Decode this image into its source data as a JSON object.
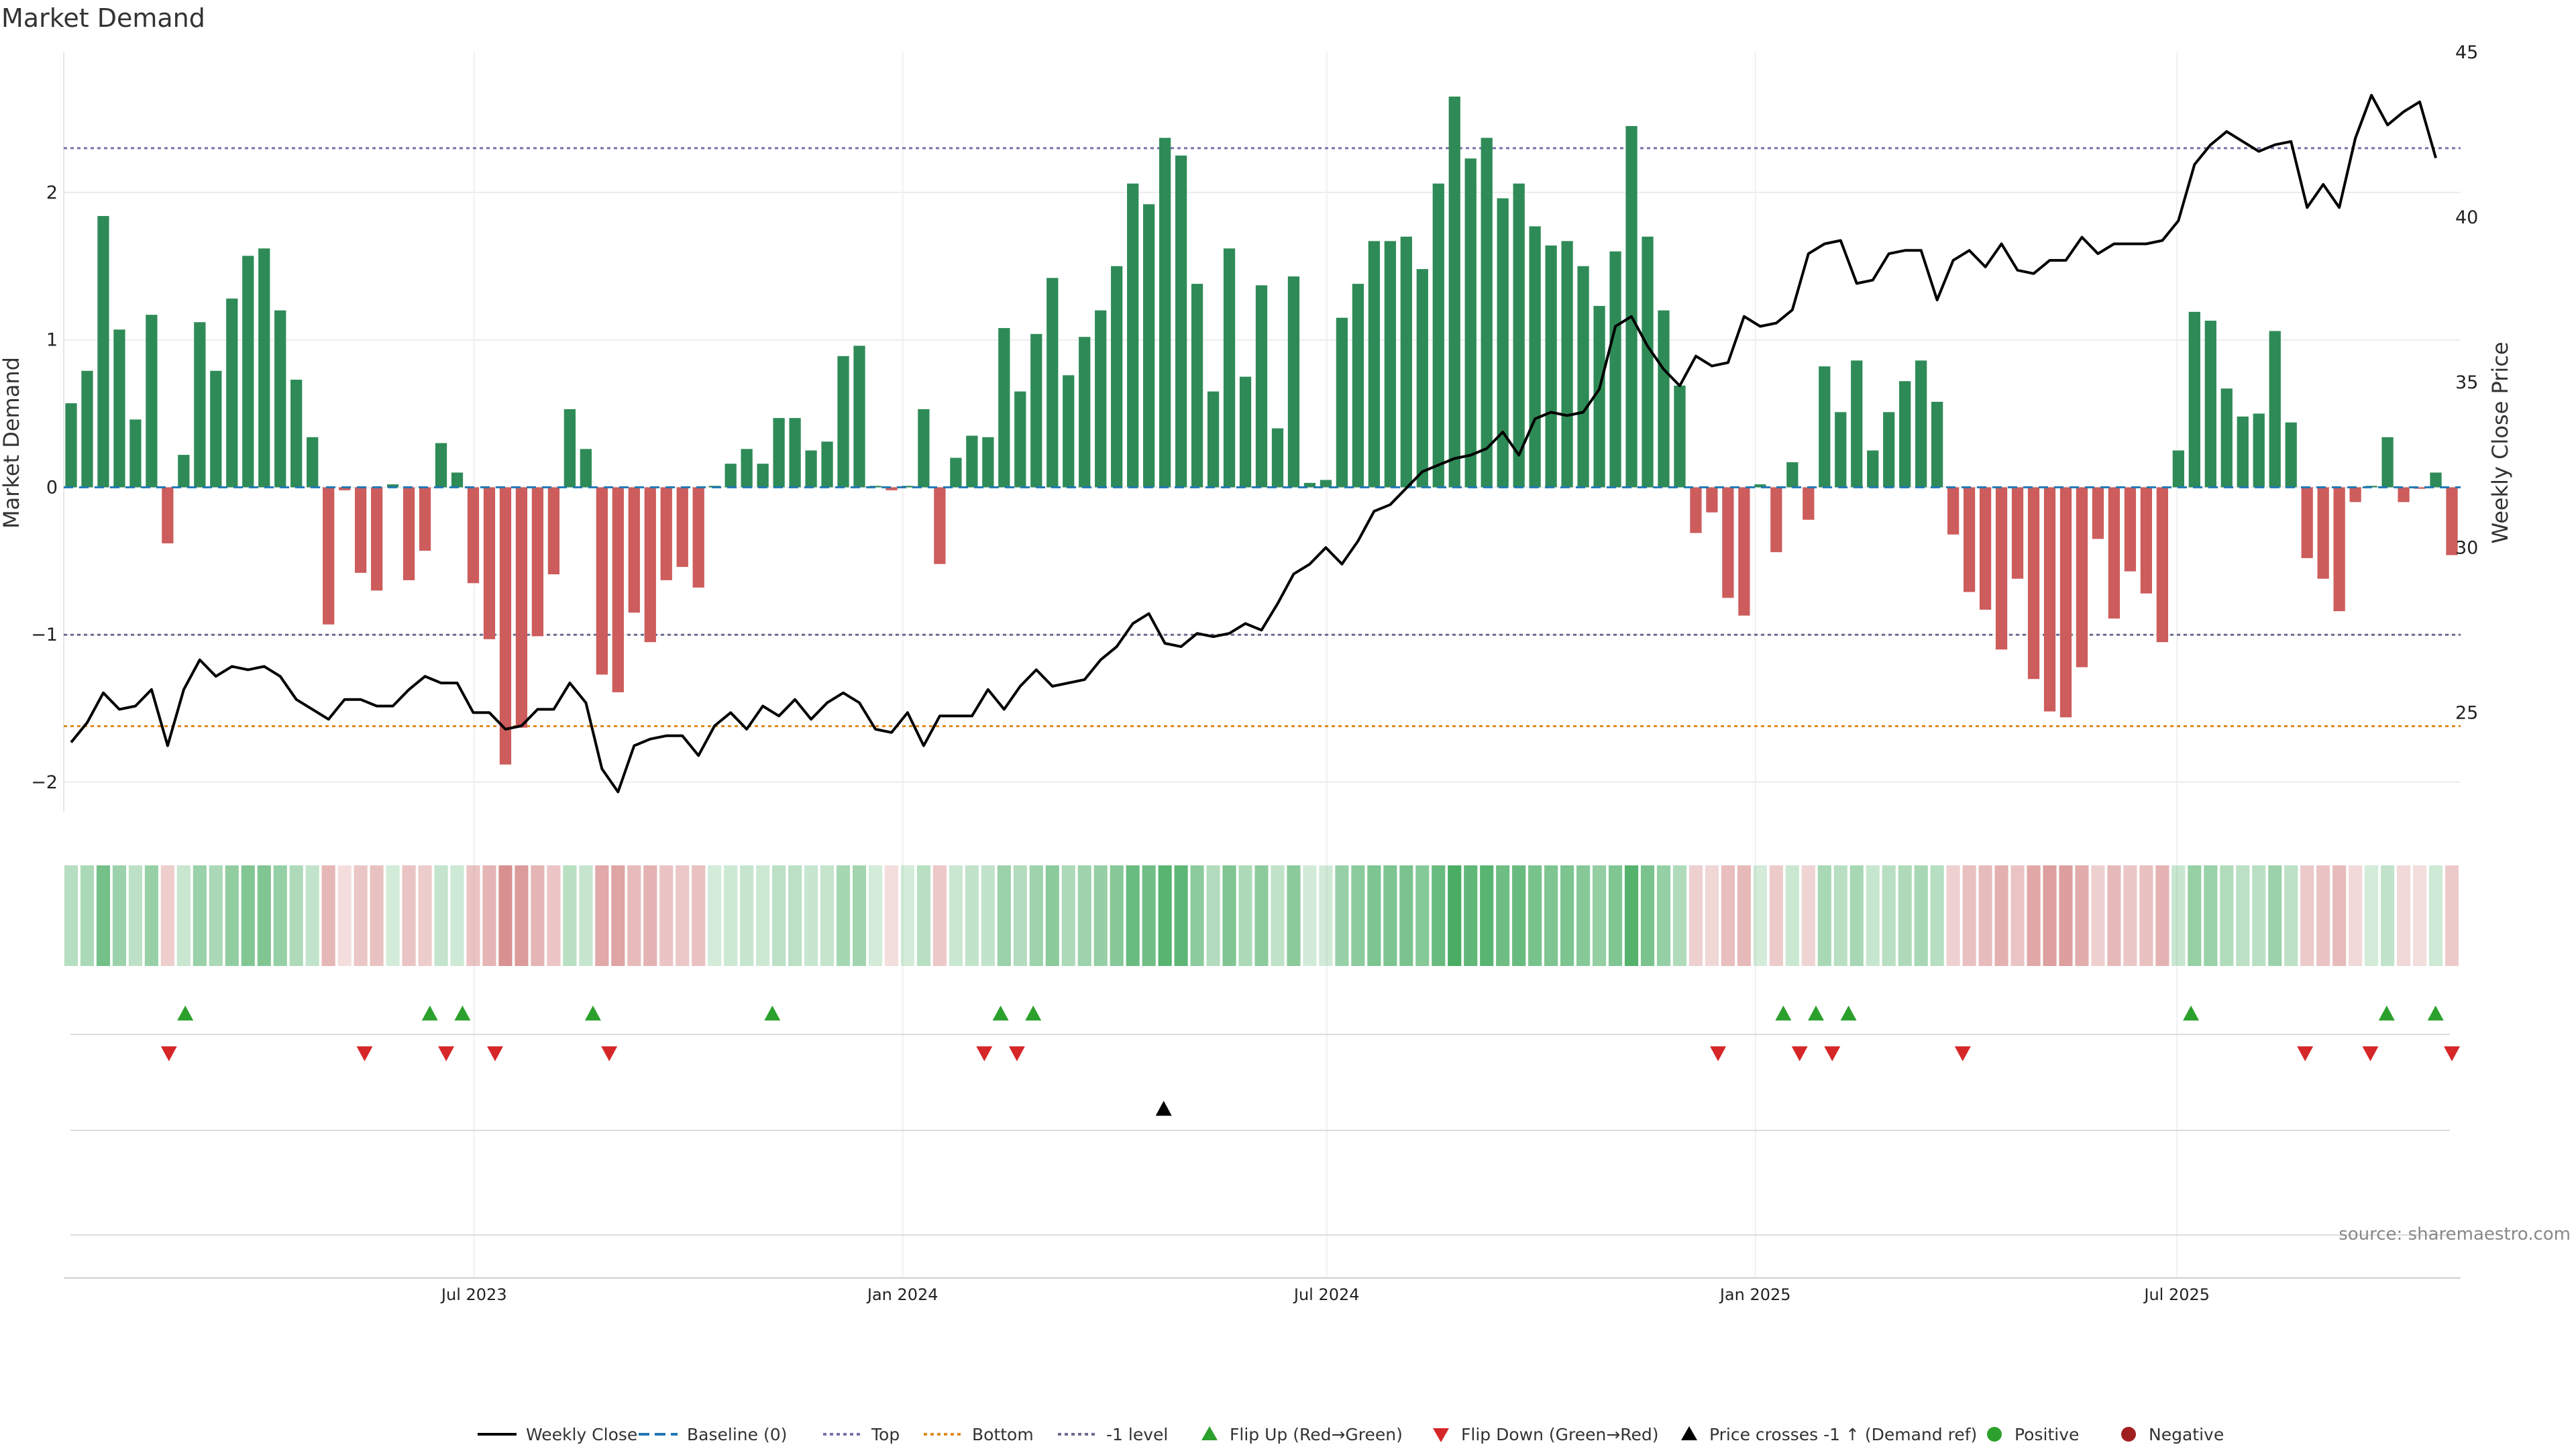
{
  "chart_data": {
    "type": "bar",
    "title": "Market Demand",
    "ylabel": "Market Demand",
    "y2label": "Weekly Close Price",
    "ylim": [
      -2.2,
      2.95
    ],
    "y2lim": [
      22,
      45
    ],
    "yticks": [
      -2,
      -1,
      0,
      1,
      2
    ],
    "y2ticks": [
      25,
      30,
      35,
      40,
      45
    ],
    "start_date": "2023-01-09",
    "end_date": "2025-10-27",
    "x_ticks": [
      {
        "date": "2023-07-01",
        "label": "Jul 2023"
      },
      {
        "date": "2024-01-01",
        "label": "Jan 2024"
      },
      {
        "date": "2024-07-01",
        "label": "Jul 2024"
      },
      {
        "date": "2025-01-01",
        "label": "Jan 2025"
      },
      {
        "date": "2025-07-01",
        "label": "Jul 2025"
      }
    ],
    "levels": {
      "top": 2.3,
      "bottom": -1.62,
      "minus_one": -1.0,
      "baseline": 0
    },
    "demand": [
      0.57,
      0.79,
      1.84,
      1.07,
      0.46,
      1.17,
      -0.38,
      0.22,
      1.12,
      0.79,
      1.28,
      1.57,
      1.62,
      1.2,
      0.73,
      0.34,
      -0.93,
      -0.02,
      -0.58,
      -0.7,
      0.02,
      -0.63,
      -0.43,
      0.3,
      0.1,
      -0.65,
      -1.03,
      -1.88,
      -1.63,
      -1.01,
      -0.59,
      0.53,
      0.26,
      -1.27,
      -1.39,
      -0.85,
      -1.05,
      -0.63,
      -0.54,
      -0.68,
      0.01,
      0.16,
      0.26,
      0.16,
      0.47,
      0.47,
      0.25,
      0.31,
      0.89,
      0.96,
      0.01,
      -0.02,
      0.01,
      0.53,
      -0.52,
      0.2,
      0.35,
      0.34,
      1.08,
      0.65,
      1.04,
      1.42,
      0.76,
      1.02,
      1.2,
      1.5,
      2.06,
      1.92,
      2.37,
      2.25,
      1.38,
      0.65,
      1.62,
      0.75,
      1.37,
      0.4,
      1.43,
      0.03,
      0.05,
      1.15,
      1.38,
      1.67,
      1.67,
      1.7,
      1.48,
      2.06,
      2.65,
      2.23,
      2.37,
      1.96,
      2.06,
      1.77,
      1.64,
      1.67,
      1.5,
      1.23,
      1.6,
      2.45,
      1.7,
      1.2,
      0.69,
      -0.31,
      -0.17,
      -0.75,
      -0.87,
      0.02,
      -0.44,
      0.17,
      -0.22,
      0.82,
      0.51,
      0.86,
      0.25,
      0.51,
      0.72,
      0.86,
      0.58,
      -0.32,
      -0.71,
      -0.83,
      -1.1,
      -0.62,
      -1.3,
      -1.52,
      -1.56,
      -1.22,
      -0.35,
      -0.89,
      -0.57,
      -0.72,
      -1.05,
      0.25,
      1.19,
      1.13,
      0.67,
      0.48,
      0.5,
      1.06,
      0.44,
      -0.48,
      -0.62,
      -0.84,
      -0.1,
      0.01,
      0.34,
      -0.1,
      -0.01,
      0.1,
      -0.46
    ],
    "close": [
      24.1,
      24.7,
      25.6,
      25.1,
      25.2,
      25.7,
      24.0,
      25.7,
      26.6,
      26.1,
      26.4,
      26.3,
      26.4,
      26.1,
      25.4,
      25.1,
      24.8,
      25.4,
      25.4,
      25.2,
      25.2,
      25.7,
      26.1,
      25.9,
      25.9,
      25.0,
      25.0,
      24.5,
      24.6,
      25.1,
      25.1,
      25.9,
      25.3,
      23.3,
      22.6,
      24.0,
      24.2,
      24.3,
      24.3,
      23.7,
      24.6,
      25.0,
      24.5,
      25.2,
      24.9,
      25.4,
      24.8,
      25.3,
      25.6,
      25.3,
      24.5,
      24.4,
      25.0,
      24.0,
      24.9,
      24.9,
      24.9,
      25.7,
      25.1,
      25.8,
      26.3,
      25.8,
      25.9,
      26.0,
      26.6,
      27.0,
      27.7,
      28.0,
      27.1,
      27.0,
      27.4,
      27.3,
      27.4,
      27.7,
      27.5,
      28.3,
      29.2,
      29.5,
      30.0,
      29.5,
      30.2,
      31.1,
      31.3,
      31.8,
      32.3,
      32.5,
      32.7,
      32.8,
      33.0,
      33.5,
      32.8,
      33.9,
      34.1,
      34.0,
      34.1,
      34.8,
      36.7,
      37.0,
      36.1,
      35.4,
      34.9,
      35.8,
      35.5,
      35.6,
      37.0,
      36.7,
      36.8,
      37.2,
      38.9,
      39.2,
      39.3,
      38.0,
      38.1,
      38.9,
      39.0,
      39.0,
      37.5,
      38.7,
      39.0,
      38.5,
      39.2,
      38.4,
      38.3,
      38.7,
      38.7,
      39.4,
      38.9,
      39.2,
      39.2,
      39.2,
      39.3,
      39.9,
      41.6,
      42.2,
      42.6,
      42.3,
      42.0,
      42.2,
      42.3,
      40.3,
      41.0,
      40.3,
      42.4,
      43.7,
      42.8,
      43.2,
      43.5,
      41.8
    ],
    "flip_up_dates": [
      "2023-02-27",
      "2023-06-12",
      "2023-06-26",
      "2023-08-21",
      "2023-11-06",
      "2024-02-12",
      "2024-02-26",
      "2025-01-13",
      "2025-01-27",
      "2025-02-10",
      "2025-07-07",
      "2025-09-29",
      "2025-10-20"
    ],
    "flip_down_dates": [
      "2023-02-20",
      "2023-05-15",
      "2023-06-19",
      "2023-07-10",
      "2023-08-28",
      "2024-02-05",
      "2024-02-19",
      "2024-12-16",
      "2025-01-20",
      "2025-02-03",
      "2025-03-31",
      "2025-08-25",
      "2025-09-22",
      "2025-10-27"
    ],
    "cross_dates": [
      "2024-04-22"
    ],
    "legend": [
      {
        "label": "Weekly Close",
        "icon": "solid-line",
        "color": "#000000"
      },
      {
        "label": "Baseline (0)",
        "icon": "dashed-line",
        "color": "#1f77b4"
      },
      {
        "label": "Top",
        "icon": "dotted-line",
        "color": "#7b6fa8"
      },
      {
        "label": "Bottom",
        "icon": "dotted-line",
        "color": "#e08a1e"
      },
      {
        "label": "-1 level",
        "icon": "dotted-line",
        "color": "#6b6b8f"
      },
      {
        "label": "Flip Up (Red→Green)",
        "icon": "triangle-up",
        "color": "#2ca02c"
      },
      {
        "label": "Flip Down (Green→Red)",
        "icon": "triangle-down",
        "color": "#d62728"
      },
      {
        "label": "Price crosses -1 ↑ (Demand ref)",
        "icon": "triangle-up",
        "color": "#000000"
      },
      {
        "label": "Positive",
        "icon": "circle",
        "color": "#2ca02c"
      },
      {
        "label": "Negative",
        "icon": "circle",
        "color": "#a11f1f"
      }
    ],
    "source_text": "source: sharemaestro.com",
    "colors": {
      "positive_bar": "#2e8b57",
      "negative_bar": "#cd5c5c",
      "close_line": "#000000",
      "top_line": "#7b6fa8",
      "bottom_line": "#e08a1e",
      "minus_one_line": "#6b6b8f",
      "baseline": "#1f77b4",
      "heat_pos": "#3aa657",
      "heat_neg": "#c96565",
      "flip_up": "#2ca02c",
      "flip_down": "#d62728",
      "cross": "#000000"
    }
  }
}
